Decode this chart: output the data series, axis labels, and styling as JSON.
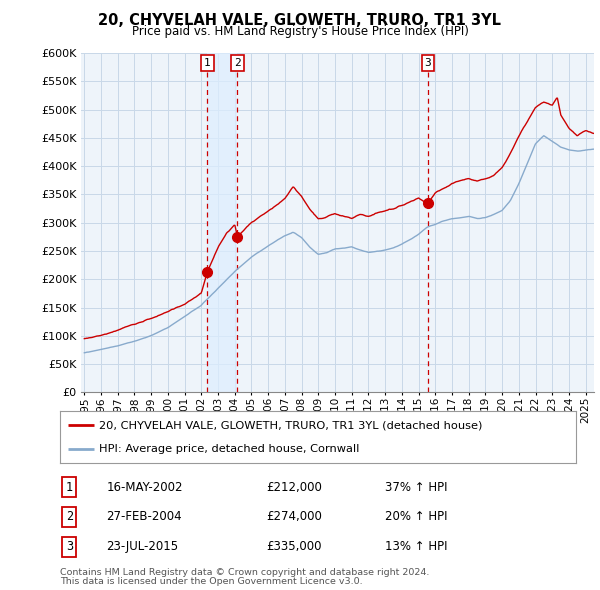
{
  "title": "20, CHYVELAH VALE, GLOWETH, TRURO, TR1 3YL",
  "subtitle": "Price paid vs. HM Land Registry's House Price Index (HPI)",
  "ylim": [
    0,
    600000
  ],
  "yticks": [
    0,
    50000,
    100000,
    150000,
    200000,
    250000,
    300000,
    350000,
    400000,
    450000,
    500000,
    550000,
    600000
  ],
  "xlim_start": 1994.8,
  "xlim_end": 2025.5,
  "sale_color": "#cc0000",
  "hpi_color": "#88aacc",
  "vline_color": "#cc0000",
  "shade_color": "#ddeeff",
  "transactions": [
    {
      "id": 1,
      "date_label": "16-MAY-2002",
      "year": 2002.37,
      "price": 212000,
      "pct": "37%",
      "dir": "↑"
    },
    {
      "id": 2,
      "date_label": "27-FEB-2004",
      "year": 2004.16,
      "price": 274000,
      "pct": "20%",
      "dir": "↑"
    },
    {
      "id": 3,
      "date_label": "23-JUL-2015",
      "year": 2015.56,
      "price": 335000,
      "pct": "13%",
      "dir": "↑"
    }
  ],
  "legend_sale_label": "20, CHYVELAH VALE, GLOWETH, TRURO, TR1 3YL (detached house)",
  "legend_hpi_label": "HPI: Average price, detached house, Cornwall",
  "footer1": "Contains HM Land Registry data © Crown copyright and database right 2024.",
  "footer2": "This data is licensed under the Open Government Licence v3.0.",
  "bg_color": "#ffffff",
  "grid_color": "#c8d8e8",
  "plot_bg": "#eef4fa"
}
